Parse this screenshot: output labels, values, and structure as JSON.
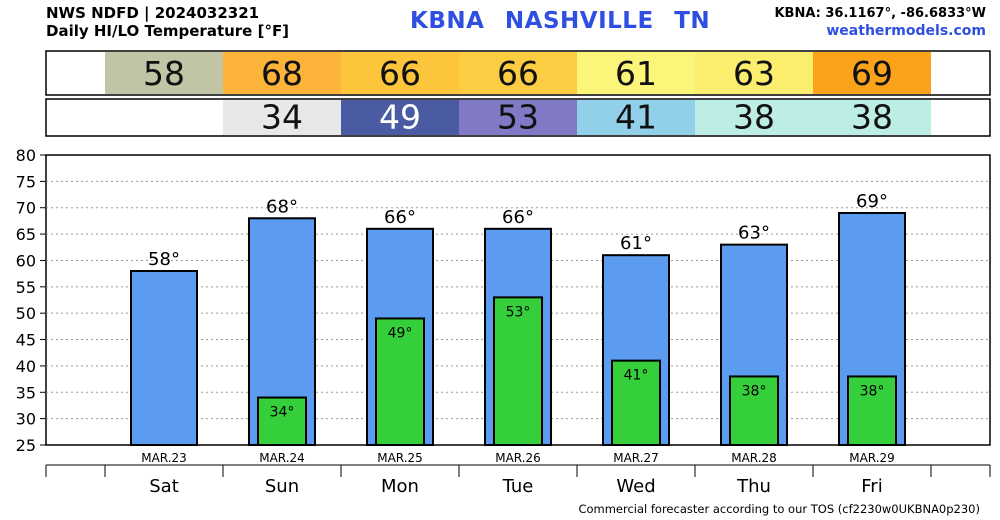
{
  "header": {
    "line1": "NWS NDFD | 2024032321",
    "line2": "Daily HI/LO Temperature [°F]",
    "station_code": "KBNA",
    "station_name": "NASHVILLE",
    "state": "TN",
    "coords": "KBNA: 36.1167°, -86.6833°W",
    "site": "weathermodels.com"
  },
  "footer": "Commercial forecaster according to our TOS (cf2230w0UKBNA0p230)",
  "colors": {
    "hi_bar": "#5b9bf0",
    "lo_bar": "#35cf3c",
    "hi_strip": [
      "#c2c4a6",
      "#fbb33a",
      "#fcc53c",
      "#fccc42",
      "#fbf57a",
      "#fbee6e",
      "#f9a21a"
    ],
    "lo_strip": [
      "#e7e8e8",
      "#4a5ba3",
      "#8079c6",
      "#92cfe8",
      "#bdeee6",
      "#bdeee6"
    ]
  },
  "chart_data": {
    "type": "bar",
    "title": "Daily HI/LO Temperature [°F]",
    "dates": [
      "MAR.23",
      "MAR.24",
      "MAR.25",
      "MAR.26",
      "MAR.27",
      "MAR.28",
      "MAR.29"
    ],
    "days": [
      "Sat",
      "Sun",
      "Mon",
      "Tue",
      "Wed",
      "Thu",
      "Fri"
    ],
    "series": [
      {
        "name": "HI",
        "values": [
          58,
          68,
          66,
          66,
          61,
          63,
          69
        ]
      },
      {
        "name": "LO",
        "values": [
          null,
          34,
          49,
          53,
          41,
          38,
          38
        ]
      }
    ],
    "hi_labels": [
      "58°",
      "68°",
      "66°",
      "66°",
      "61°",
      "63°",
      "69°"
    ],
    "lo_labels": [
      "",
      "34°",
      "49°",
      "53°",
      "41°",
      "38°",
      "38°"
    ],
    "hi_strip_text": [
      "58",
      "68",
      "66",
      "66",
      "61",
      "63",
      "69"
    ],
    "lo_strip_text": [
      "",
      "34",
      "49",
      "53",
      "41",
      "38",
      "38"
    ],
    "yticks": [
      "25",
      "30",
      "35",
      "40",
      "45",
      "50",
      "55",
      "60",
      "65",
      "70",
      "75",
      "80"
    ],
    "ylim": [
      25,
      80
    ],
    "grid": true
  }
}
